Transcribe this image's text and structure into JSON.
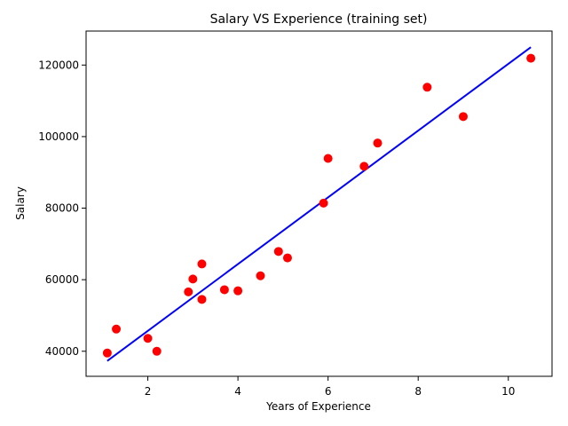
{
  "chart_data": {
    "type": "scatter",
    "title": "Salary VS Experience (training set)",
    "xlabel": "Years of Experience",
    "ylabel": "Salary",
    "xlim": [
      0.63,
      10.97
    ],
    "ylim": [
      33000,
      129500
    ],
    "xticks": [
      2,
      4,
      6,
      8,
      10
    ],
    "xtick_labels": [
      "2",
      "4",
      "6",
      "8",
      "10"
    ],
    "yticks": [
      40000,
      60000,
      80000,
      100000,
      120000
    ],
    "ytick_labels": [
      "40000",
      "60000",
      "80000",
      "100000",
      "120000"
    ],
    "grid": false,
    "series": [
      {
        "type": "scatter",
        "color": "#ff0000",
        "x": [
          1.1,
          1.3,
          2.0,
          2.2,
          2.9,
          3.0,
          3.2,
          3.2,
          3.7,
          4.0,
          4.5,
          4.9,
          5.1,
          5.9,
          6.0,
          6.8,
          7.1,
          8.2,
          9.0,
          10.5
        ],
        "y": [
          39500,
          46200,
          43600,
          40000,
          56600,
          60200,
          64400,
          54500,
          57200,
          56900,
          61100,
          67900,
          66100,
          81400,
          93900,
          91700,
          98200,
          113800,
          105600,
          121900
        ]
      },
      {
        "type": "line",
        "color": "#0000ff",
        "x": [
          1.1,
          10.5
        ],
        "y": [
          37300,
          125000
        ]
      }
    ]
  }
}
